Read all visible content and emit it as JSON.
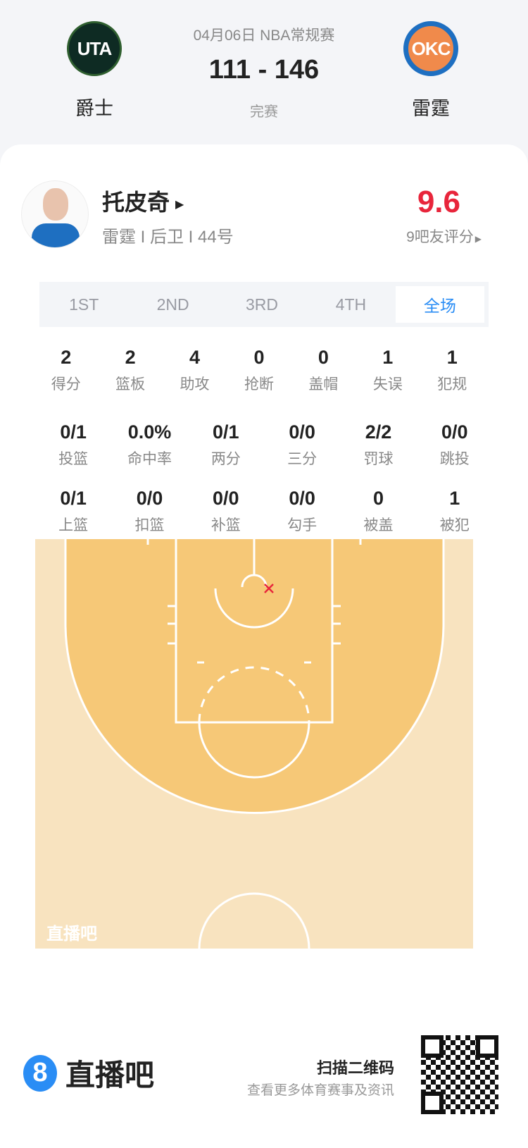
{
  "game": {
    "date_league": "04月06日 NBA常规赛",
    "score": "111 - 146",
    "status": "完赛",
    "home": {
      "abbr": "UTA",
      "name": "爵士"
    },
    "away": {
      "abbr": "OKC",
      "name": "雷霆"
    }
  },
  "player": {
    "name": "托皮奇",
    "info": "雷霆 I 后卫 I 44号",
    "rating": "9.6",
    "rating_label": "9吧友评分",
    "rating_color": "#e8253b"
  },
  "tabs": [
    {
      "label": "1ST"
    },
    {
      "label": "2ND"
    },
    {
      "label": "3RD"
    },
    {
      "label": "4TH"
    },
    {
      "label": "全场",
      "active": true
    }
  ],
  "stats_row1": [
    {
      "v": "2",
      "l": "得分"
    },
    {
      "v": "2",
      "l": "篮板"
    },
    {
      "v": "4",
      "l": "助攻"
    },
    {
      "v": "0",
      "l": "抢断"
    },
    {
      "v": "0",
      "l": "盖帽"
    },
    {
      "v": "1",
      "l": "失误"
    },
    {
      "v": "1",
      "l": "犯规"
    }
  ],
  "stats_row2": [
    {
      "v": "0/1",
      "l": "投篮"
    },
    {
      "v": "0.0%",
      "l": "命中率"
    },
    {
      "v": "0/1",
      "l": "两分"
    },
    {
      "v": "0/0",
      "l": "三分"
    },
    {
      "v": "2/2",
      "l": "罚球"
    },
    {
      "v": "0/0",
      "l": "跳投"
    }
  ],
  "stats_row3": [
    {
      "v": "0/1",
      "l": "上篮"
    },
    {
      "v": "0/0",
      "l": "扣篮"
    },
    {
      "v": "0/0",
      "l": "补篮"
    },
    {
      "v": "0/0",
      "l": "勾手"
    },
    {
      "v": "0",
      "l": "被盖"
    },
    {
      "v": "1",
      "l": "被犯"
    }
  ],
  "court": {
    "watermark": "直播吧",
    "shots": [
      {
        "result": "miss",
        "icon": "x-mark"
      }
    ],
    "miss_color": "#e8253b"
  },
  "footer": {
    "brand": "直播吧",
    "scan": "扫描二维码",
    "sub": "查看更多体育赛事及资讯",
    "accent": "#2a8df5"
  }
}
